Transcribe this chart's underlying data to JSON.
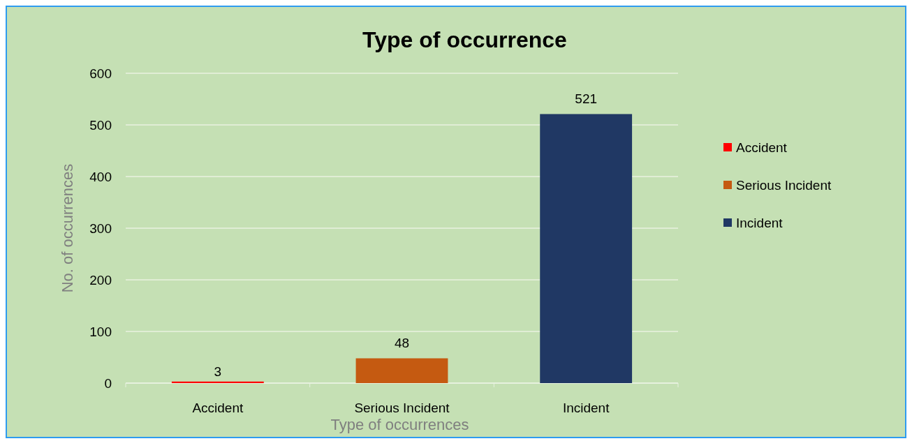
{
  "chart_data": {
    "type": "bar",
    "title": "Type of occurrence",
    "xlabel": "Type of occurrences",
    "ylabel": "No. of occurrences",
    "categories": [
      "Accident",
      "Serious Incident",
      "Incident"
    ],
    "series": [
      {
        "name": "Accident",
        "color": "#ff0000",
        "values": [
          3,
          null,
          null
        ]
      },
      {
        "name": "Serious Incident",
        "color": "#c55a11",
        "values": [
          null,
          48,
          null
        ]
      },
      {
        "name": "Incident",
        "color": "#203864",
        "values": [
          null,
          null,
          521
        ]
      }
    ],
    "ylim": [
      0,
      600
    ],
    "yticks": [
      0,
      100,
      200,
      300,
      400,
      500,
      600
    ],
    "grid": "y",
    "legend": "right",
    "data_labels": true
  }
}
